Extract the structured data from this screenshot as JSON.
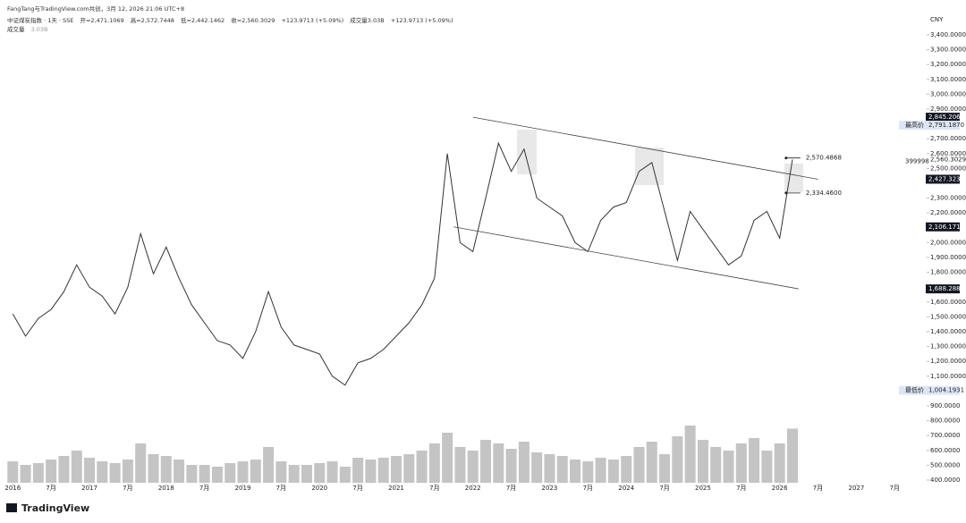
{
  "header": {
    "attribution": "FangTang与TradingView.com共创，3月 12, 2026 21:06 UTC+8",
    "symbol": "中证煤炭指数 · 1天 · SSE",
    "ohlc": [
      "开=2,471.1069",
      "高=2,572.7448",
      "低=2,442.1462",
      "收=2,560.3029"
    ],
    "change": "+123.9713 (+5.09%)",
    "volume": "成交量3.03B",
    "change2": "+123.9713 (+5.09%)",
    "volume_row": {
      "label": "成交量",
      "value": "3.03B"
    }
  },
  "chart_data": {
    "type": "line",
    "currency": "CNY",
    "color": "#333333",
    "x": [
      "2016-01",
      "2016-03",
      "2016-05",
      "2016-07",
      "2016-09",
      "2016-11",
      "2017-01",
      "2017-03",
      "2017-05",
      "2017-07",
      "2017-09",
      "2017-11",
      "2018-01",
      "2018-03",
      "2018-05",
      "2018-07",
      "2018-09",
      "2018-11",
      "2019-01",
      "2019-03",
      "2019-05",
      "2019-07",
      "2019-09",
      "2019-11",
      "2020-01",
      "2020-03",
      "2020-05",
      "2020-07",
      "2020-09",
      "2020-11",
      "2021-01",
      "2021-03",
      "2021-05",
      "2021-07",
      "2021-09",
      "2021-11",
      "2022-01",
      "2022-03",
      "2022-05",
      "2022-07",
      "2022-09",
      "2022-11",
      "2023-01",
      "2023-03",
      "2023-05",
      "2023-07",
      "2023-09",
      "2023-11",
      "2024-01",
      "2024-03",
      "2024-05",
      "2024-07",
      "2024-09",
      "2024-11",
      "2025-01",
      "2025-03",
      "2025-05",
      "2025-07",
      "2025-09",
      "2025-11",
      "2026-01",
      "2026-03"
    ],
    "values": [
      1520,
      1370,
      1490,
      1550,
      1670,
      1850,
      1700,
      1640,
      1520,
      1700,
      2060,
      1790,
      1970,
      1760,
      1580,
      1460,
      1340,
      1310,
      1220,
      1400,
      1670,
      1430,
      1310,
      1280,
      1250,
      1100,
      1040,
      1190,
      1220,
      1280,
      1370,
      1460,
      1580,
      1760,
      2600,
      2000,
      1940,
      2300,
      2670,
      2480,
      2630,
      2300,
      2240,
      2180,
      2000,
      1940,
      2150,
      2240,
      2270,
      2480,
      2540,
      2210,
      1880,
      2210,
      2090,
      1970,
      1850,
      1910,
      2150,
      2210,
      2030,
      2560.3029
    ],
    "volume": {
      "color": "#c4c4c4",
      "values": [
        1.2,
        1.0,
        1.1,
        1.3,
        1.5,
        1.8,
        1.4,
        1.2,
        1.1,
        1.3,
        2.2,
        1.6,
        1.5,
        1.3,
        1.0,
        1.0,
        0.9,
        1.1,
        1.2,
        1.3,
        2.0,
        1.2,
        1.0,
        1.0,
        1.1,
        1.2,
        0.9,
        1.4,
        1.3,
        1.4,
        1.5,
        1.6,
        1.8,
        2.2,
        2.8,
        2.0,
        1.8,
        2.4,
        2.2,
        1.9,
        2.3,
        1.7,
        1.6,
        1.5,
        1.3,
        1.2,
        1.4,
        1.3,
        1.5,
        2.0,
        2.3,
        1.6,
        2.6,
        3.2,
        2.4,
        2.0,
        1.8,
        2.2,
        2.5,
        1.8,
        2.2,
        3.03
      ]
    },
    "xlim": [
      "2015-11",
      "2027-12"
    ],
    "xticks": [
      {
        "value": "2016-01",
        "label": "2016"
      },
      {
        "value": "2016-07",
        "label": "7月"
      },
      {
        "value": "2017-01",
        "label": "2017"
      },
      {
        "value": "2017-07",
        "label": "7月"
      },
      {
        "value": "2018-01",
        "label": "2018"
      },
      {
        "value": "2018-07",
        "label": "7月"
      },
      {
        "value": "2019-01",
        "label": "2019"
      },
      {
        "value": "2019-07",
        "label": "7月"
      },
      {
        "value": "2020-01",
        "label": "2020"
      },
      {
        "value": "2020-07",
        "label": "7月"
      },
      {
        "value": "2021-01",
        "label": "2021"
      },
      {
        "value": "2021-07",
        "label": "7月"
      },
      {
        "value": "2022-01",
        "label": "2022"
      },
      {
        "value": "2022-07",
        "label": "7月"
      },
      {
        "value": "2023-01",
        "label": "2023"
      },
      {
        "value": "2023-07",
        "label": "7月"
      },
      {
        "value": "2024-01",
        "label": "2024"
      },
      {
        "value": "2024-07",
        "label": "7月"
      },
      {
        "value": "2025-01",
        "label": "2025"
      },
      {
        "value": "2025-07",
        "label": "7月"
      },
      {
        "value": "2026-01",
        "label": "2026"
      },
      {
        "value": "2026-07",
        "label": "7月"
      },
      {
        "value": "2027-01",
        "label": "2027"
      },
      {
        "value": "2027-07",
        "label": "7月"
      }
    ],
    "ylim": [
      400,
      3400
    ],
    "yticks": [
      {
        "value": 3400,
        "label": "3,400.0000"
      },
      {
        "value": 3300,
        "label": "3,300.0000"
      },
      {
        "value": 3200,
        "label": "3,200.0000"
      },
      {
        "value": 3100,
        "label": "3,100.0000"
      },
      {
        "value": 3000,
        "label": "3,000.0000"
      },
      {
        "value": 2900,
        "label": "2,900.0000"
      },
      {
        "value": 2700,
        "label": "2,700.0000"
      },
      {
        "value": 2600,
        "label": "2,600.0000"
      },
      {
        "value": 2500,
        "label": "2,500.0000"
      },
      {
        "value": 2300,
        "label": "2,300.0000"
      },
      {
        "value": 2200,
        "label": "2,200.0000"
      },
      {
        "value": 2000,
        "label": "2,000.0000"
      },
      {
        "value": 1900,
        "label": "1,900.0000"
      },
      {
        "value": 1800,
        "label": "1,800.0000"
      },
      {
        "value": 1600,
        "label": "1,600.0000"
      },
      {
        "value": 1500,
        "label": "1,500.0000"
      },
      {
        "value": 1400,
        "label": "1,400.0000"
      },
      {
        "value": 1300,
        "label": "1,300.0000"
      },
      {
        "value": 1200,
        "label": "1,200.0000"
      },
      {
        "value": 1100,
        "label": "1,100.0000"
      },
      {
        "value": 900,
        "label": "900.0000"
      },
      {
        "value": 800,
        "label": "800.0000"
      },
      {
        "value": 700,
        "label": "700.0000"
      },
      {
        "value": 600,
        "label": "600.0000"
      },
      {
        "value": 500,
        "label": "500.0000"
      },
      {
        "value": 400,
        "label": "400.0000"
      }
    ],
    "y2lim": [
      0,
      10
    ],
    "trendlines": [
      {
        "x": [
          "2022-01",
          "2026-07"
        ],
        "values": [
          2845.2065,
          2427.323
        ],
        "value_labels": [
          "2,845.2065",
          "2,427.3230"
        ]
      },
      {
        "x": [
          "2021-10",
          "2026-04"
        ],
        "values": [
          2106.1718,
          1688.2884
        ],
        "value_labels": [
          "2,106.1718",
          "1,688.2884"
        ]
      }
    ],
    "range_marks": {
      "x": "2026-02",
      "values": [
        2570.4868,
        2334.46
      ],
      "value_labels": [
        "2,570.4868",
        "2,334.4600"
      ]
    },
    "high": {
      "label": "最高价",
      "value": 2791.187,
      "value_label": "2,791.1870"
    },
    "low": {
      "label": "最低价",
      "value": 1004.1931,
      "value_label": "1,004.1931"
    },
    "last": {
      "value": 2560.3029,
      "value_label": "2,560.3029",
      "countdown": "399998"
    }
  },
  "footer": {
    "logo": "TradingView"
  }
}
